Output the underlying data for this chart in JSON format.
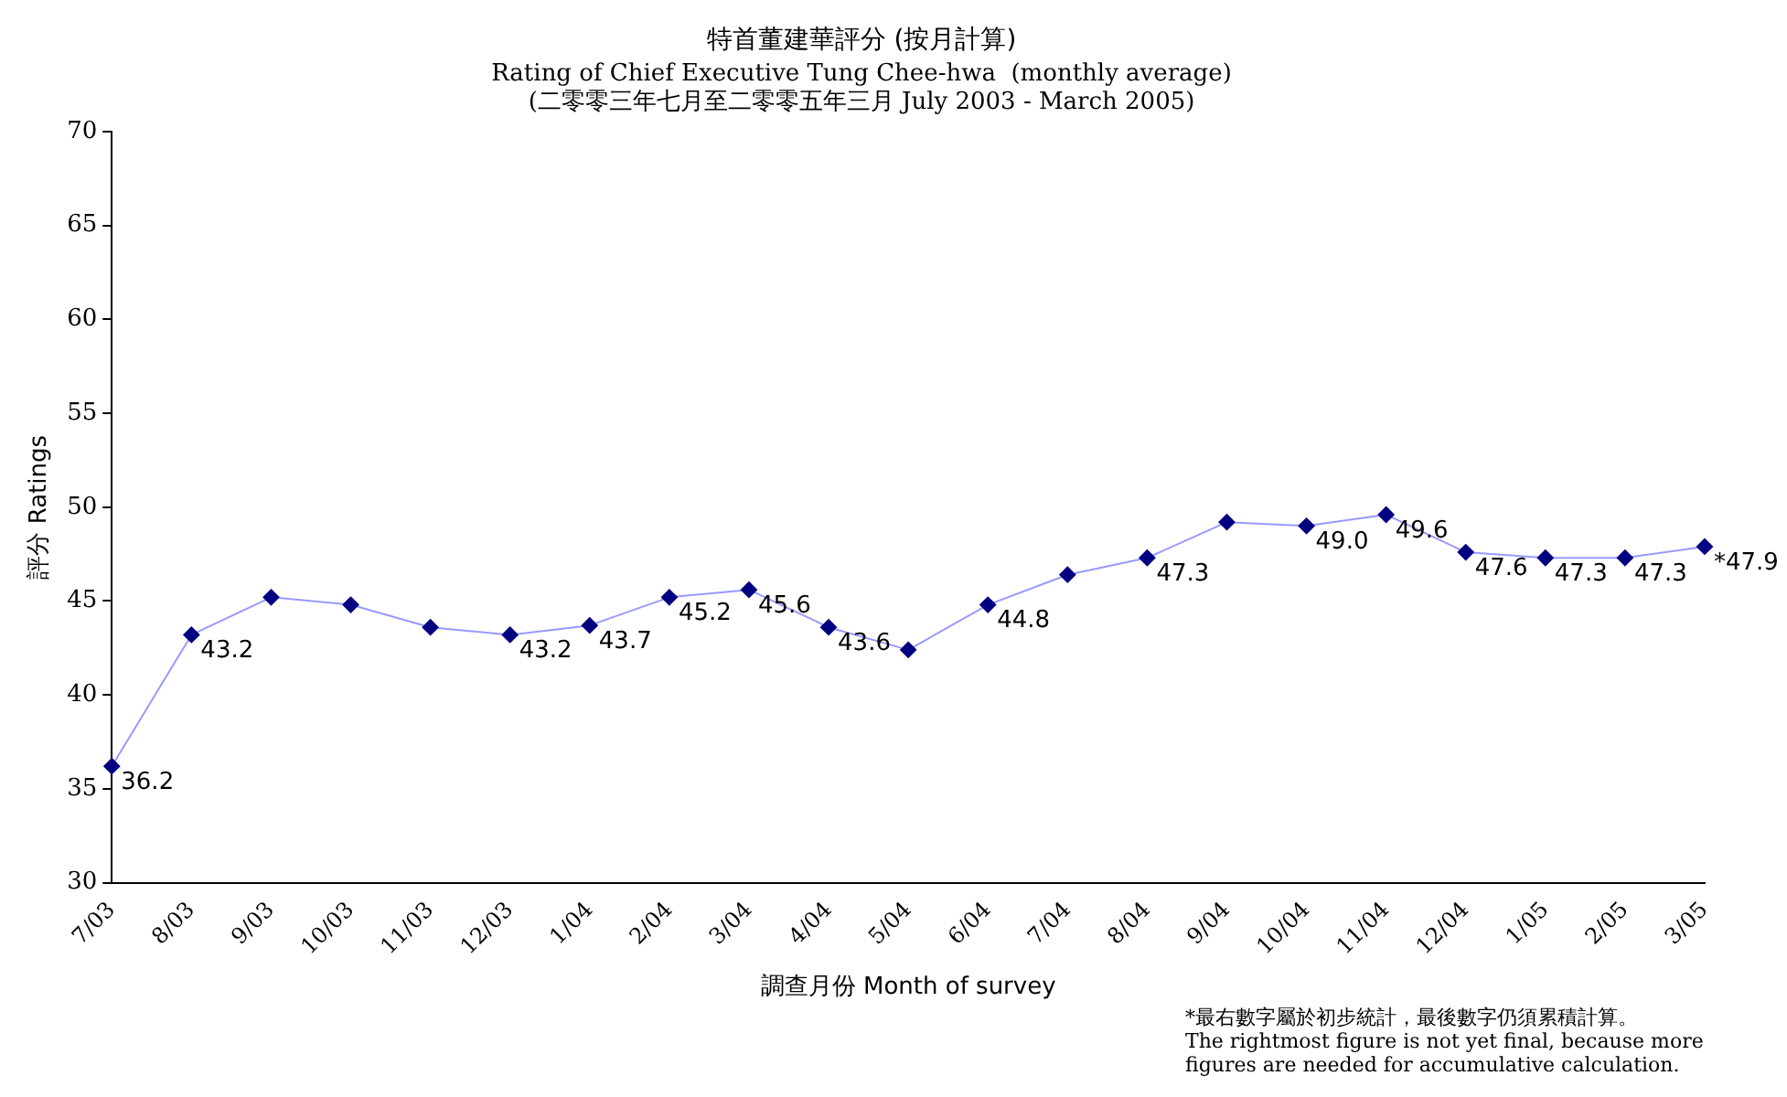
{
  "chart_data": {
    "type": "line",
    "title": "特首董建華評分 (按月計算)",
    "subtitle": "Rating of Chief Executive Tung Chee-hwa  (monthly average)\n(二零零三年七月至二零零五年三月 July 2003 - March 2005)",
    "xlabel": "調查月份 Month of survey",
    "ylabel": "評分 Ratings",
    "categories": [
      "7/03",
      "8/03",
      "9/03",
      "10/03",
      "11/03",
      "12/03",
      "1/04",
      "2/04",
      "3/04",
      "4/04",
      "5/04",
      "6/04",
      "7/04",
      "8/04",
      "9/04",
      "10/04",
      "11/04",
      "12/04",
      "1/05",
      "2/05",
      "3/05"
    ],
    "series": [
      {
        "color": "#9999ff",
        "colors": [
          "#000080",
          "#000080",
          "#000080",
          "#000080",
          "#000080",
          "#000080",
          "#000080",
          "#000080",
          "#000080",
          "#000080",
          "#000080",
          "#000080",
          "#000080",
          "#000080",
          "#000080",
          "#000080",
          "#000080",
          "#000080",
          "#000080",
          "#000080",
          "#000080"
        ],
        "values": [
          36.2,
          43.2,
          45.2,
          44.8,
          43.6,
          43.2,
          43.7,
          45.2,
          45.6,
          43.6,
          42.4,
          44.8,
          46.4,
          47.3,
          49.2,
          49.0,
          49.6,
          47.6,
          47.3,
          47.3,
          47.9
        ],
        "value_labels": [
          "36.2",
          "43.2",
          null,
          null,
          null,
          "43.2",
          "43.7",
          "45.2",
          "45.6",
          "43.6",
          null,
          "44.8",
          null,
          "47.3",
          null,
          "49.0",
          "49.6",
          "47.6",
          "47.3",
          "47.3",
          "*47.9"
        ]
      }
    ],
    "marker": "diamond",
    "ylim": [
      30,
      70
    ],
    "yticks": [
      30,
      35,
      40,
      45,
      50,
      55,
      60,
      65,
      70
    ],
    "grid": false,
    "legend": false,
    "annotations": [
      "*最右數字屬於初步統計，最後數字仍須累積計算。",
      "The rightmost figure is not yet final, because more figures are needed for accumulative calculation."
    ]
  }
}
